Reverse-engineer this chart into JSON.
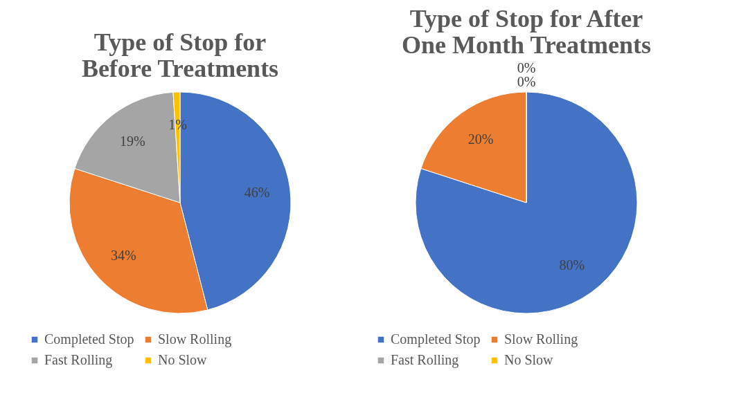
{
  "chart_data": [
    {
      "type": "pie",
      "title": "Type of Stop for\nBefore Treatments",
      "categories": [
        "Completed Stop",
        "Slow Rolling",
        "Fast Rolling",
        "No Slow"
      ],
      "values": [
        46,
        34,
        19,
        1
      ],
      "value_labels": [
        "46%",
        "34%",
        "19%",
        "1%"
      ],
      "colors": [
        "#4472c4",
        "#ed7d31",
        "#a5a5a5",
        "#ffc000"
      ],
      "legend": "bottom"
    },
    {
      "type": "pie",
      "title": "Type of Stop for After\nOne Month Treatments",
      "categories": [
        "Completed Stop",
        "Slow Rolling",
        "Fast Rolling",
        "No Slow"
      ],
      "values": [
        80,
        20,
        0,
        0
      ],
      "value_labels": [
        "80%",
        "20%",
        "0%",
        "0%"
      ],
      "colors": [
        "#4472c4",
        "#ed7d31",
        "#a5a5a5",
        "#ffc000"
      ],
      "legend": "bottom"
    }
  ]
}
